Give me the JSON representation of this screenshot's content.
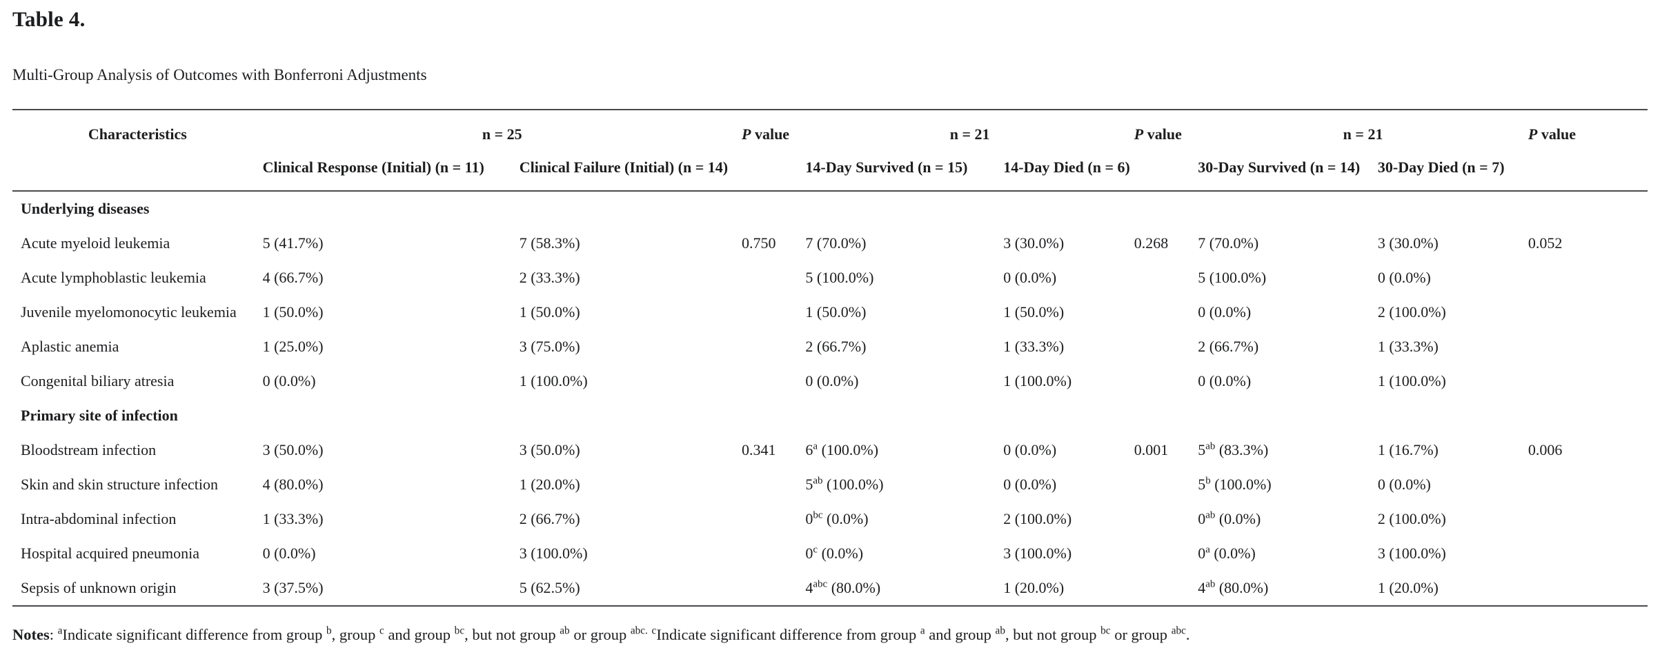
{
  "page": {
    "title": "Table 4.",
    "subtitle": "Multi-Group Analysis of Outcomes with Bonferroni Adjustments"
  },
  "colors": {
    "background": "#ffffff",
    "text": "#1c1d1f",
    "rule": "#47494c"
  },
  "table": {
    "col_widths_pct": [
      15.3,
      15.7,
      13.6,
      3.9,
      12.1,
      8.0,
      3.9,
      11.0,
      9.2,
      7.3
    ],
    "header_row1": [
      {
        "text": "Characteristics",
        "colspan": 1,
        "class": "char-th"
      },
      {
        "text": "n = 25",
        "colspan": 2,
        "class": "group-th"
      },
      {
        "text": "*P* value",
        "colspan": 1,
        "class": "p-th"
      },
      {
        "text": "n = 21",
        "colspan": 2,
        "class": "group-th"
      },
      {
        "text": "*P* value",
        "colspan": 1,
        "class": "p-th"
      },
      {
        "text": "n = 21",
        "colspan": 2,
        "class": "group-th"
      },
      {
        "text": "*P* value",
        "colspan": 1,
        "class": "p-th"
      }
    ],
    "header_row2": [
      "",
      "Clinical Response (Initial) (n = 11)",
      "Clinical Failure (Initial) (n = 14)",
      "",
      "14-Day Survived (n = 15)",
      "14-Day Died (n = 6)",
      "",
      "30-Day Survived (n = 14)",
      "30-Day Died (n = 7)",
      ""
    ],
    "rows": [
      {
        "type": "section",
        "label": "Underlying diseases"
      },
      {
        "type": "data",
        "label": "Acute myeloid leukemia",
        "cells": [
          "5 (41.7%)",
          "7 (58.3%)",
          "0.750",
          "7 (70.0%)",
          "3 (30.0%)",
          "0.268",
          "7 (70.0%)",
          "3 (30.0%)",
          "0.052"
        ]
      },
      {
        "type": "data",
        "label": "Acute lymphoblastic leukemia",
        "cells": [
          "4 (66.7%)",
          "2 (33.3%)",
          "",
          "5 (100.0%)",
          "0 (0.0%)",
          "",
          "5 (100.0%)",
          "0 (0.0%)",
          ""
        ]
      },
      {
        "type": "data",
        "label": "Juvenile myelomonocytic leukemia",
        "cells": [
          "1 (50.0%)",
          "1 (50.0%)",
          "",
          "1 (50.0%)",
          "1 (50.0%)",
          "",
          "0 (0.0%)",
          "2 (100.0%)",
          ""
        ]
      },
      {
        "type": "data",
        "label": "Aplastic anemia",
        "cells": [
          "1 (25.0%)",
          "3 (75.0%)",
          "",
          "2 (66.7%)",
          "1 (33.3%)",
          "",
          "2 (66.7%)",
          "1 (33.3%)",
          ""
        ]
      },
      {
        "type": "data",
        "label": "Congenital biliary atresia",
        "cells": [
          "0 (0.0%)",
          "1 (100.0%)",
          "",
          "0 (0.0%)",
          "1 (100.0%)",
          "",
          "0 (0.0%)",
          "1 (100.0%)",
          ""
        ]
      },
      {
        "type": "section",
        "label": "Primary site of infection"
      },
      {
        "type": "data",
        "label": "Bloodstream infection",
        "cells": [
          "3 (50.0%)",
          "3 (50.0%)",
          "0.341",
          "6^{a} (100.0%)",
          "0 (0.0%)",
          "0.001",
          "5^{ab} (83.3%)",
          "1 (16.7%)",
          "0.006"
        ]
      },
      {
        "type": "data",
        "label": "Skin and skin structure infection",
        "cells": [
          "4 (80.0%)",
          "1 (20.0%)",
          "",
          "5^{ab} (100.0%)",
          "0 (0.0%)",
          "",
          "5^{b} (100.0%)",
          "0 (0.0%)",
          ""
        ]
      },
      {
        "type": "data",
        "label": "Intra-abdominal infection",
        "cells": [
          "1 (33.3%)",
          "2 (66.7%)",
          "",
          "0^{bc} (0.0%)",
          "2 (100.0%)",
          "",
          "0^{ab} (0.0%)",
          "2 (100.0%)",
          ""
        ]
      },
      {
        "type": "data",
        "label": "Hospital acquired pneumonia",
        "cells": [
          "0 (0.0%)",
          "3 (100.0%)",
          "",
          "0^{c} (0.0%)",
          "3 (100.0%)",
          "",
          "0^{a} (0.0%)",
          "3 (100.0%)",
          ""
        ]
      },
      {
        "type": "data",
        "label": "Sepsis of unknown origin",
        "cells": [
          "3 (37.5%)",
          "5 (62.5%)",
          "",
          "4^{abc} (80.0%)",
          "1 (20.0%)",
          "",
          "4^{ab} (80.0%)",
          "1 (20.0%)",
          ""
        ]
      }
    ]
  },
  "notes": {
    "text": "**Notes**: ^{a}Indicate significant difference from group ^{b}, group ^{c} and group ^{bc}, but not group ^{ab} or group ^{abc.} ^{c}Indicate significant difference from group ^{a} and group ^{ab}, but not group ^{bc} or group ^{abc}."
  }
}
